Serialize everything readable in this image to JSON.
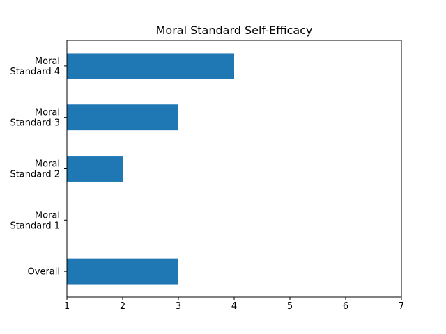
{
  "chart_data": {
    "type": "bar",
    "orientation": "horizontal",
    "title": "Moral Standard Self-Efficacy",
    "xlabel": "",
    "ylabel": "",
    "categories": [
      "Overall",
      "Moral\nStandard 1",
      "Moral\nStandard 2",
      "Moral\nStandard 3",
      "Moral\nStandard 4"
    ],
    "values": [
      3,
      1,
      2,
      3,
      4
    ],
    "xlim": [
      1,
      7
    ],
    "xticks": [
      1,
      2,
      3,
      4,
      5,
      6,
      7
    ],
    "grid": false,
    "bar_color": "#1f77b4"
  }
}
